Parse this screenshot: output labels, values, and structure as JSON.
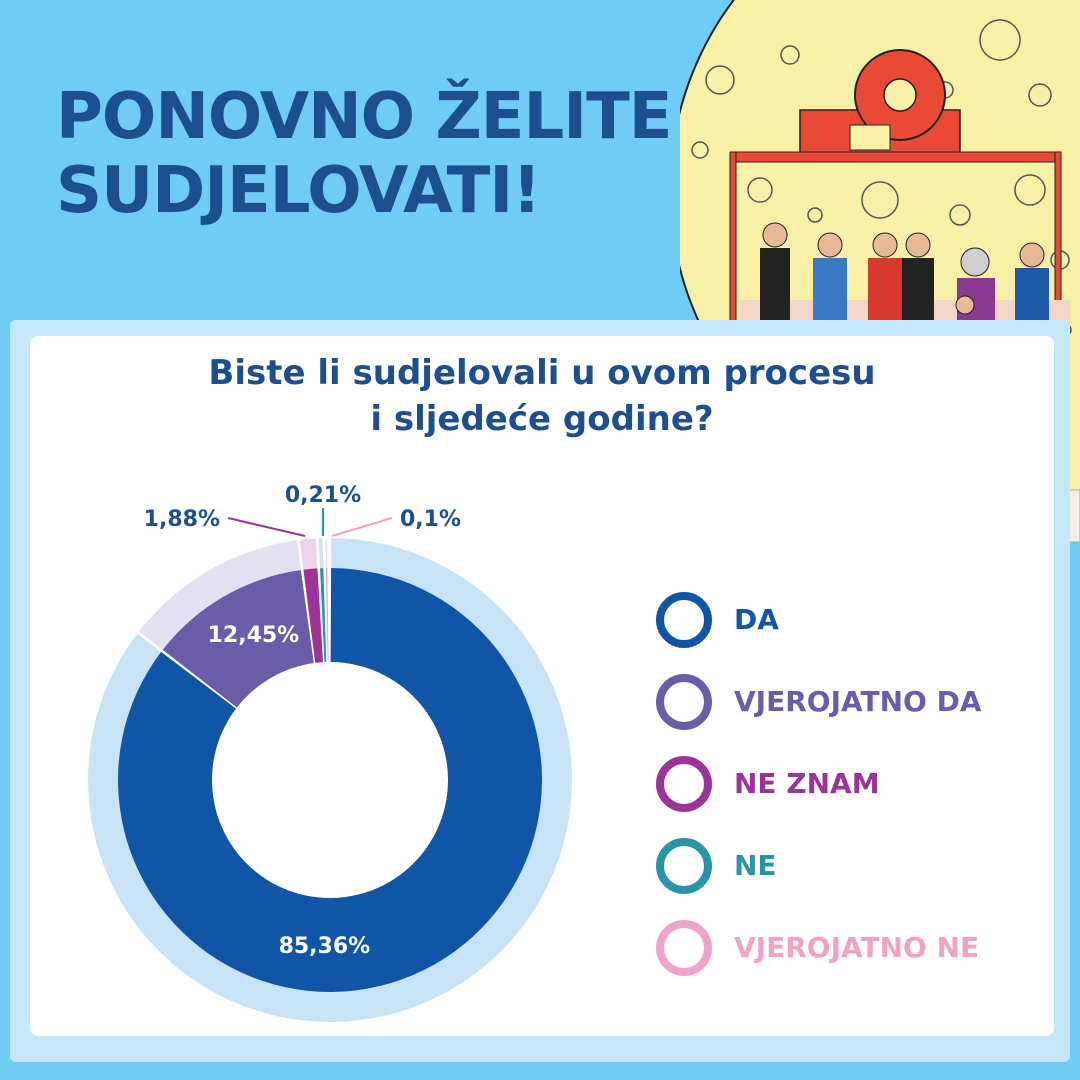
{
  "header": {
    "title_line1": "PONOVNO ŽELITE",
    "title_line2": "SUDJELOVATI!"
  },
  "question": {
    "line1": "Biste li sudjelovali u ovom procesu",
    "line2": "i sljedeće godine?"
  },
  "chart_data": {
    "type": "pie",
    "subtype": "donut",
    "title": "Biste li sudjelovali u ovom procesu i sljedeće godine?",
    "categories": [
      "DA",
      "VJEROJATNO DA",
      "NE ZNAM",
      "NE",
      "VJEROJATNO NE"
    ],
    "values": [
      85.36,
      12.45,
      1.88,
      0.21,
      0.1
    ],
    "labels": [
      "85,36%",
      "12,45%",
      "1,88%",
      "0,21%",
      "0,1%"
    ],
    "colors": [
      "#1156a6",
      "#6a5ca8",
      "#9b3496",
      "#2a93a8",
      "#f0a3c8"
    ],
    "outer_colors": [
      "#c8e3f6",
      "#e3e0f2",
      "#ecd3ea",
      "#c9e8ec",
      "#fad8e8"
    ],
    "legend_placement": "right"
  },
  "colors": {
    "background": "#6fcdf5",
    "title": "#1d4e8f"
  },
  "icons": {
    "illustration": "moon-with-people-illustration-icon"
  }
}
